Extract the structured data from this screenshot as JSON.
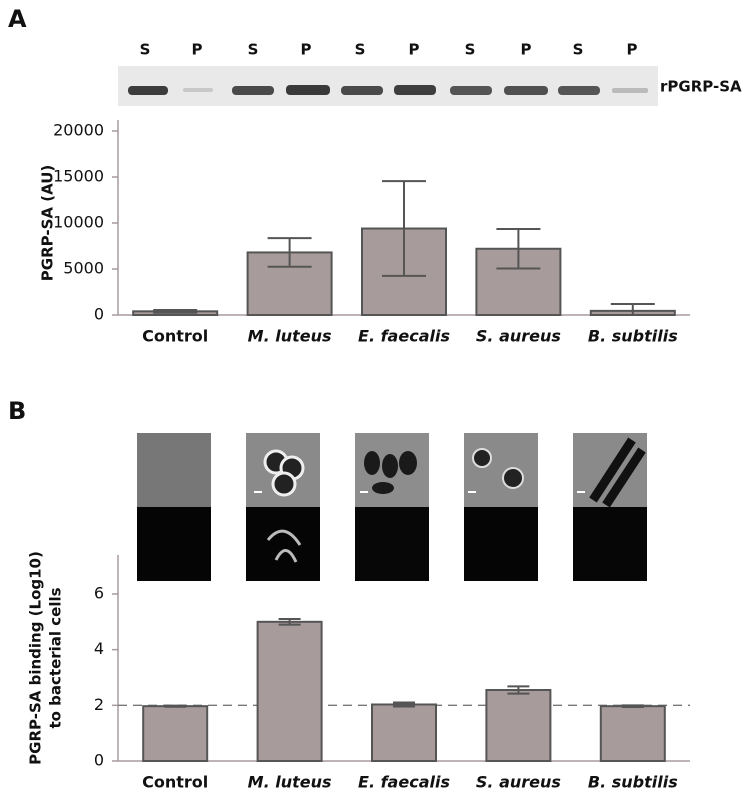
{
  "panel_labels": [
    "A",
    "B"
  ],
  "gel": {
    "lane_labels": [
      "S",
      "P",
      "S",
      "P",
      "S",
      "P",
      "S",
      "P",
      "S",
      "P"
    ],
    "band_label": "rPGRP-SA"
  },
  "chart_data": [
    {
      "type": "bar",
      "y_label": [
        "PGRP-SA (AU)"
      ],
      "categories": [
        "Control",
        "M. luteus",
        "E. faecalis",
        "S. aureus",
        "B. subtilis"
      ],
      "values": [
        400,
        6800,
        9400,
        7200,
        450
      ],
      "errors": [
        150,
        1550,
        5150,
        2150,
        750
      ],
      "color": "#a89b9b",
      "ylim": [
        0,
        20000
      ],
      "yticks": [
        0,
        5000,
        10000,
        15000,
        20000
      ]
    },
    {
      "type": "bar",
      "y_label": [
        "PGRP-SA binding (Log10)",
        "to bacterial cells"
      ],
      "categories": [
        "Control",
        "M. luteus",
        "E. faecalis",
        "S. aureus",
        "B. subtilis"
      ],
      "values": [
        1.97,
        5.0,
        2.03,
        2.55,
        1.97
      ],
      "errors": [
        0.02,
        0.1,
        0.07,
        0.13,
        0.03
      ],
      "color": "#a89b9b",
      "ylim": [
        0,
        7.4
      ],
      "yticks": [
        0,
        2,
        4,
        6
      ],
      "reference_line": 2
    }
  ]
}
